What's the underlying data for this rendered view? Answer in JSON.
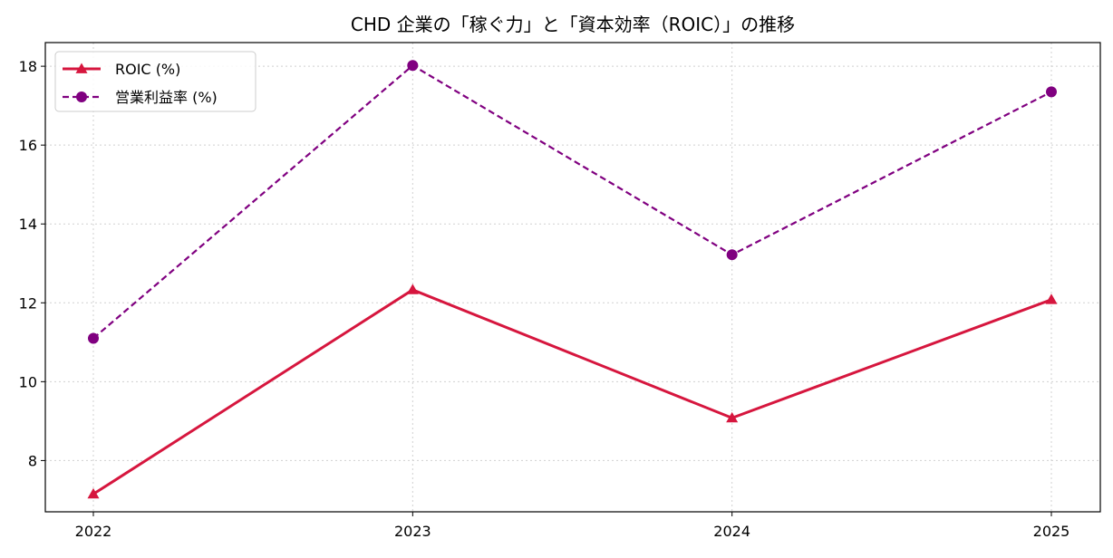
{
  "chart_data": {
    "type": "line",
    "title": "CHD 企業の「稼ぐ力」と「資本効率（ROIC）」の推移",
    "xlabel": "",
    "ylabel": "",
    "categories": [
      "2022",
      "2023",
      "2024",
      "2025"
    ],
    "ylim": [
      6.7,
      18.6
    ],
    "yticks": [
      8,
      10,
      12,
      14,
      16,
      18
    ],
    "grid": true,
    "legend_position": "upper-left",
    "series": [
      {
        "name": "ROIC (%)",
        "values": [
          7.15,
          12.33,
          9.08,
          12.08
        ],
        "color": "#d6163e",
        "line_style": "solid",
        "marker": "triangle"
      },
      {
        "name": "営業利益率 (%)",
        "values": [
          11.1,
          18.02,
          13.22,
          17.35
        ],
        "color": "#800080",
        "line_style": "dashed",
        "marker": "circle"
      }
    ]
  }
}
